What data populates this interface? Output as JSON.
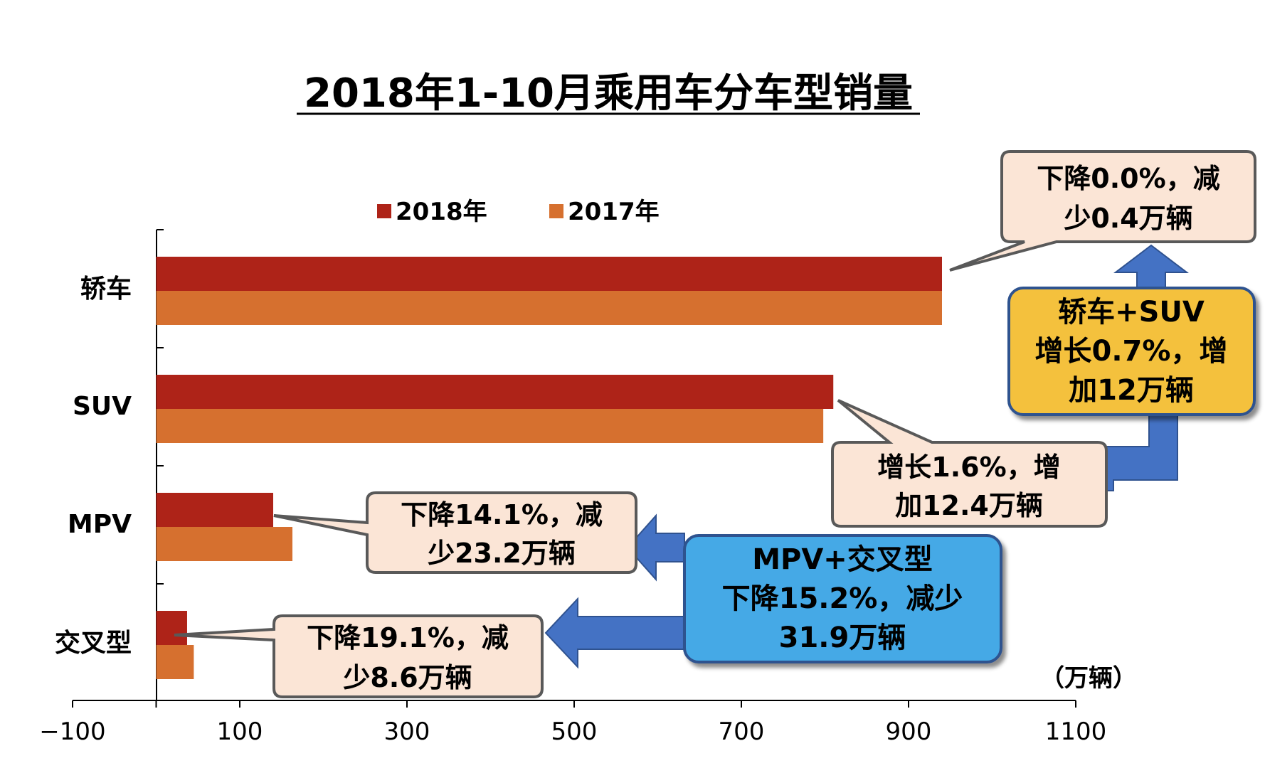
{
  "chart_data": {
    "type": "bar",
    "orientation": "horizontal",
    "title": "2018年1-10月乘用车分车型销量",
    "unit_label": "（万辆）",
    "categories": [
      "轿车",
      "SUV",
      "MPV",
      "交叉型"
    ],
    "series": [
      {
        "name": "2018年",
        "values": [
          940,
          810,
          140,
          37
        ]
      },
      {
        "name": "2017年",
        "values": [
          940,
          798,
          163,
          45
        ]
      }
    ],
    "xlim": [
      -100,
      1100
    ],
    "xticks": [
      "−100",
      "100",
      "300",
      "500",
      "700",
      "900",
      "1100"
    ],
    "xtick_values": [
      -100,
      100,
      300,
      500,
      700,
      900,
      1100
    ],
    "legend_position": "top",
    "colors": {
      "s2018": "#ae2318",
      "s2017": "#d6702f"
    },
    "annotations": {
      "sedan": {
        "lines": [
          "下降0.0%，减",
          "少0.4万辆"
        ]
      },
      "sedan_suv": {
        "lines": [
          "轿车+SUV",
          "增长0.7%，增",
          "加12万辆"
        ]
      },
      "suv": {
        "lines": [
          "增长1.6%，增",
          "加12.4万辆"
        ]
      },
      "mpv": {
        "lines": [
          "下降14.1%，减",
          "少23.2万辆"
        ]
      },
      "mpv_cross": {
        "lines": [
          "MPV+交叉型",
          "下降15.2%，减少",
          "31.9万辆"
        ]
      },
      "cross": {
        "lines": [
          "下降19.1%，减",
          "少8.6万辆"
        ]
      }
    }
  }
}
